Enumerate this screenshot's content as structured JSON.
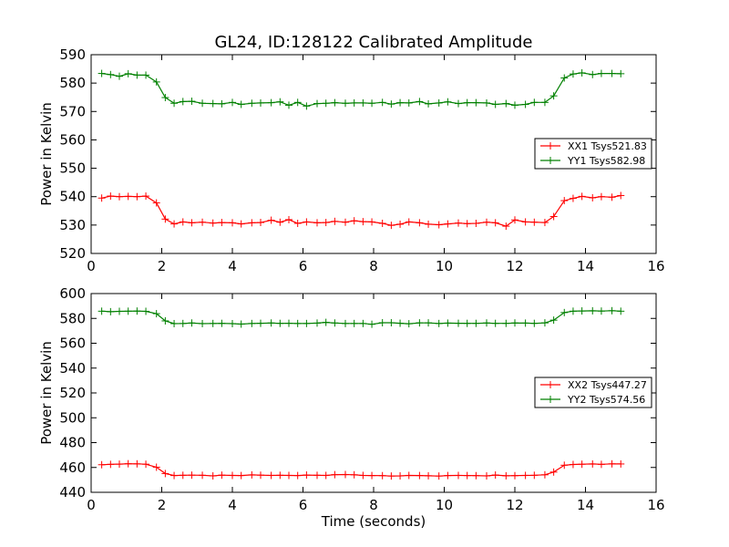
{
  "figure": {
    "title": "GL24, ID:128122 Calibrated Amplitude"
  },
  "chart_data": [
    {
      "type": "line",
      "title": "GL24, ID:128122 Calibrated Amplitude",
      "xlabel": "",
      "ylabel": "Power in Kelvin",
      "xlim": [
        0,
        16
      ],
      "ylim": [
        520,
        590
      ],
      "xticks": [
        0,
        2,
        4,
        6,
        8,
        10,
        12,
        14,
        16
      ],
      "yticks": [
        520,
        530,
        540,
        550,
        560,
        570,
        580,
        590
      ],
      "grid": false,
      "legend_position": "right",
      "series": [
        {
          "name": "XX1 Tsys521.83",
          "color": "#ff0000",
          "x": [
            0.3,
            0.55,
            0.8,
            1.05,
            1.3,
            1.55,
            1.85,
            2.1,
            2.35,
            2.6,
            2.85,
            3.15,
            3.45,
            3.7,
            4.0,
            4.25,
            4.55,
            4.8,
            5.1,
            5.35,
            5.6,
            5.85,
            6.1,
            6.4,
            6.65,
            6.9,
            7.2,
            7.45,
            7.7,
            7.95,
            8.25,
            8.5,
            8.75,
            9.0,
            9.3,
            9.55,
            9.85,
            10.1,
            10.4,
            10.65,
            10.9,
            11.2,
            11.45,
            11.75,
            12.0,
            12.3,
            12.55,
            12.85,
            13.1,
            13.4,
            13.65,
            13.9,
            14.2,
            14.45,
            14.75,
            15.0
          ],
          "values": [
            539.5,
            540.2,
            540.0,
            540.1,
            540.0,
            540.2,
            537.8,
            532.1,
            530.4,
            531.1,
            530.8,
            531.0,
            530.7,
            530.9,
            530.8,
            530.4,
            530.8,
            530.9,
            531.7,
            531.0,
            531.9,
            530.6,
            531.1,
            530.8,
            530.9,
            531.3,
            531.0,
            531.5,
            531.2,
            531.1,
            530.6,
            529.9,
            530.3,
            531.1,
            530.8,
            530.3,
            530.1,
            530.4,
            530.7,
            530.5,
            530.6,
            531.0,
            530.8,
            529.6,
            531.8,
            531.1,
            531.0,
            530.9,
            533.0,
            538.6,
            539.4,
            540.1,
            539.6,
            540.0,
            539.8,
            540.4
          ]
        },
        {
          "name": "YY1 Tsys582.98",
          "color": "#008000",
          "x": [
            0.3,
            0.55,
            0.8,
            1.05,
            1.3,
            1.55,
            1.85,
            2.1,
            2.35,
            2.6,
            2.85,
            3.15,
            3.45,
            3.7,
            4.0,
            4.25,
            4.55,
            4.8,
            5.1,
            5.35,
            5.6,
            5.85,
            6.1,
            6.4,
            6.65,
            6.9,
            7.2,
            7.45,
            7.7,
            7.95,
            8.25,
            8.5,
            8.75,
            9.0,
            9.3,
            9.55,
            9.85,
            10.1,
            10.4,
            10.65,
            10.9,
            11.2,
            11.45,
            11.75,
            12.0,
            12.3,
            12.55,
            12.85,
            13.1,
            13.4,
            13.65,
            13.9,
            14.2,
            14.45,
            14.75,
            15.0
          ],
          "values": [
            583.4,
            583.0,
            582.4,
            583.3,
            582.8,
            582.8,
            580.4,
            574.9,
            572.9,
            573.5,
            573.6,
            572.9,
            572.8,
            572.7,
            573.2,
            572.5,
            572.9,
            573.0,
            573.1,
            573.4,
            572.2,
            573.2,
            571.9,
            572.8,
            572.9,
            573.1,
            572.9,
            573.0,
            573.0,
            572.9,
            573.2,
            572.6,
            573.1,
            573.0,
            573.5,
            572.7,
            573.0,
            573.4,
            572.8,
            573.1,
            573.1,
            573.0,
            572.5,
            572.8,
            572.2,
            572.5,
            573.2,
            573.2,
            575.5,
            581.8,
            583.2,
            583.6,
            583.0,
            583.4,
            583.4,
            583.3
          ]
        }
      ]
    },
    {
      "type": "line",
      "title": "",
      "xlabel": "Time (seconds)",
      "ylabel": "Power in Kelvin",
      "xlim": [
        0,
        16
      ],
      "ylim": [
        440,
        600
      ],
      "xticks": [
        0,
        2,
        4,
        6,
        8,
        10,
        12,
        14,
        16
      ],
      "yticks": [
        440,
        460,
        480,
        500,
        520,
        540,
        560,
        580,
        600
      ],
      "grid": false,
      "legend_position": "right",
      "series": [
        {
          "name": "XX2 Tsys447.27",
          "color": "#ff0000",
          "x": [
            0.3,
            0.55,
            0.8,
            1.05,
            1.3,
            1.55,
            1.85,
            2.1,
            2.35,
            2.6,
            2.85,
            3.15,
            3.45,
            3.7,
            4.0,
            4.25,
            4.55,
            4.8,
            5.1,
            5.35,
            5.6,
            5.85,
            6.1,
            6.4,
            6.65,
            6.9,
            7.2,
            7.45,
            7.7,
            7.95,
            8.25,
            8.5,
            8.75,
            9.0,
            9.3,
            9.55,
            9.85,
            10.1,
            10.4,
            10.65,
            10.9,
            11.2,
            11.45,
            11.75,
            12.0,
            12.3,
            12.55,
            12.85,
            13.1,
            13.4,
            13.65,
            13.9,
            14.2,
            14.45,
            14.75,
            15.0
          ],
          "values": [
            462.2,
            462.5,
            462.7,
            463.0,
            462.9,
            462.6,
            460.2,
            455.1,
            453.5,
            453.7,
            453.8,
            453.7,
            453.2,
            453.8,
            453.6,
            453.5,
            454.0,
            453.8,
            453.6,
            453.7,
            453.6,
            453.5,
            453.9,
            453.7,
            453.6,
            454.2,
            454.3,
            454.1,
            453.6,
            453.5,
            453.4,
            453.1,
            453.2,
            453.6,
            453.5,
            453.3,
            453.1,
            453.5,
            453.6,
            453.5,
            453.4,
            453.2,
            453.9,
            453.3,
            453.4,
            453.6,
            453.7,
            454.1,
            456.3,
            461.8,
            462.4,
            462.6,
            462.8,
            462.5,
            462.9,
            462.8
          ]
        },
        {
          "name": "YY2 Tsys574.56",
          "color": "#008000",
          "x": [
            0.3,
            0.55,
            0.8,
            1.05,
            1.3,
            1.55,
            1.85,
            2.1,
            2.35,
            2.6,
            2.85,
            3.15,
            3.45,
            3.7,
            4.0,
            4.25,
            4.55,
            4.8,
            5.1,
            5.35,
            5.6,
            5.85,
            6.1,
            6.4,
            6.65,
            6.9,
            7.2,
            7.45,
            7.7,
            7.95,
            8.25,
            8.5,
            8.75,
            9.0,
            9.3,
            9.55,
            9.85,
            10.1,
            10.4,
            10.65,
            10.9,
            11.2,
            11.45,
            11.75,
            12.0,
            12.3,
            12.55,
            12.85,
            13.1,
            13.4,
            13.65,
            13.9,
            14.2,
            14.45,
            14.75,
            15.0
          ],
          "values": [
            585.8,
            585.4,
            585.7,
            585.8,
            585.9,
            585.7,
            583.8,
            578.0,
            575.8,
            575.9,
            576.3,
            575.8,
            575.9,
            576.0,
            575.8,
            575.4,
            575.9,
            576.1,
            576.3,
            576.0,
            576.1,
            575.9,
            575.9,
            576.2,
            576.8,
            576.3,
            575.9,
            575.9,
            575.9,
            575.3,
            576.5,
            576.5,
            576.1,
            575.7,
            576.4,
            576.4,
            575.9,
            576.2,
            576.1,
            576.0,
            576.0,
            576.3,
            576.0,
            576.0,
            576.3,
            576.2,
            576.0,
            576.4,
            578.6,
            584.7,
            585.8,
            586.0,
            586.1,
            585.9,
            586.2,
            585.8
          ]
        }
      ]
    }
  ]
}
